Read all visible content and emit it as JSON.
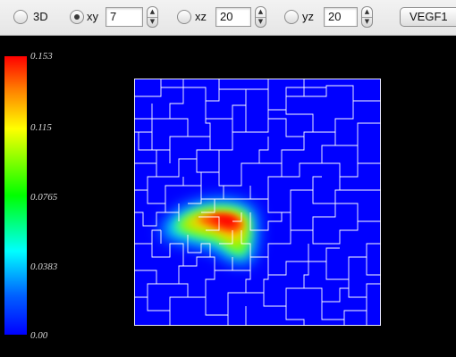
{
  "toolbar": {
    "modes": [
      {
        "label": "3D",
        "checked": false
      },
      {
        "label": "xy",
        "checked": true,
        "value": "7"
      },
      {
        "label": "xz",
        "checked": false,
        "value": "20"
      },
      {
        "label": "yz",
        "checked": false,
        "value": "20"
      }
    ],
    "variable": "VEGF1"
  },
  "colorbar": {
    "ticks": [
      "0.153",
      "0.115",
      "0.0765",
      "0.0383",
      "0.00"
    ]
  },
  "colors": {
    "background": "#000000",
    "field": "#0000ff",
    "grid": "#ffffff"
  }
}
